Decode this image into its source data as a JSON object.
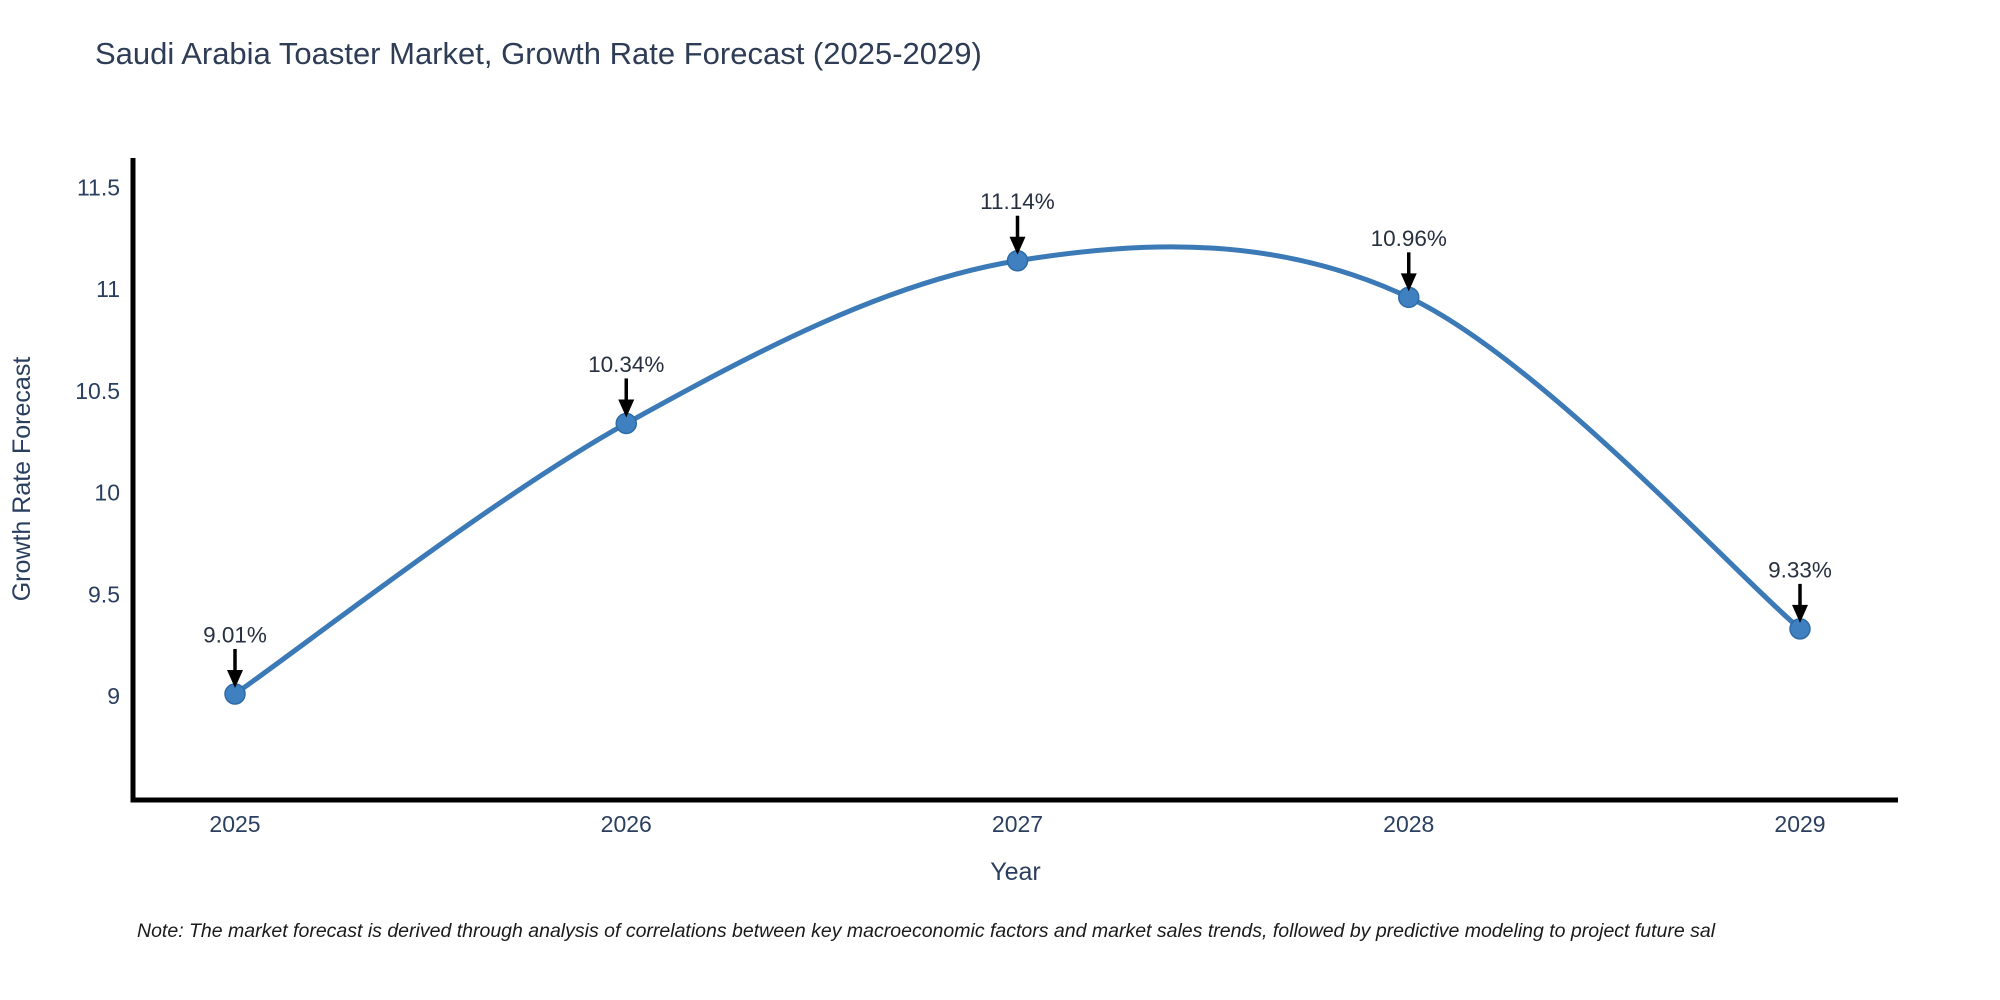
{
  "chart": {
    "note": "Note: The market forecast is derived through analysis of correlations between key macroeconomic factors and market sales trends, followed by predictive modeling to project future sal"
  },
  "chart_data": {
    "type": "line",
    "title": "Saudi Arabia Toaster Market, Growth Rate Forecast (2025-2029)",
    "xlabel": "Year",
    "ylabel": "Growth Rate Forecast",
    "x": [
      2025,
      2026,
      2027,
      2028,
      2029
    ],
    "values": [
      9.01,
      10.34,
      11.14,
      10.96,
      9.33
    ],
    "point_labels": [
      "9.01%",
      "10.34%",
      "11.14%",
      "10.96%",
      "9.33%"
    ],
    "xtick_labels": [
      "2025",
      "2026",
      "2027",
      "2028",
      "2029"
    ],
    "yticks": [
      9,
      9.5,
      10,
      10.5,
      11,
      11.5
    ],
    "ytick_labels": [
      "9",
      "9.5",
      "10",
      "10.5",
      "11",
      "11.5"
    ],
    "line_shape": "spline",
    "legend": "none",
    "grid": "off",
    "xlim": [
      2024.74,
      2029.25
    ],
    "ylim": [
      8.49,
      11.66
    ],
    "colors": {
      "line": "#3b7ab6",
      "marker": "#3f80c0",
      "marker_edge": "#2f6ba6",
      "axis": "#000000",
      "tick_text": "#2a3f5f",
      "axis_title_text": "#2a3f5f",
      "title_text": "#2e3c56",
      "annotation_text": "#26303f",
      "arrow": "#000000",
      "background": "#ffffff"
    }
  }
}
